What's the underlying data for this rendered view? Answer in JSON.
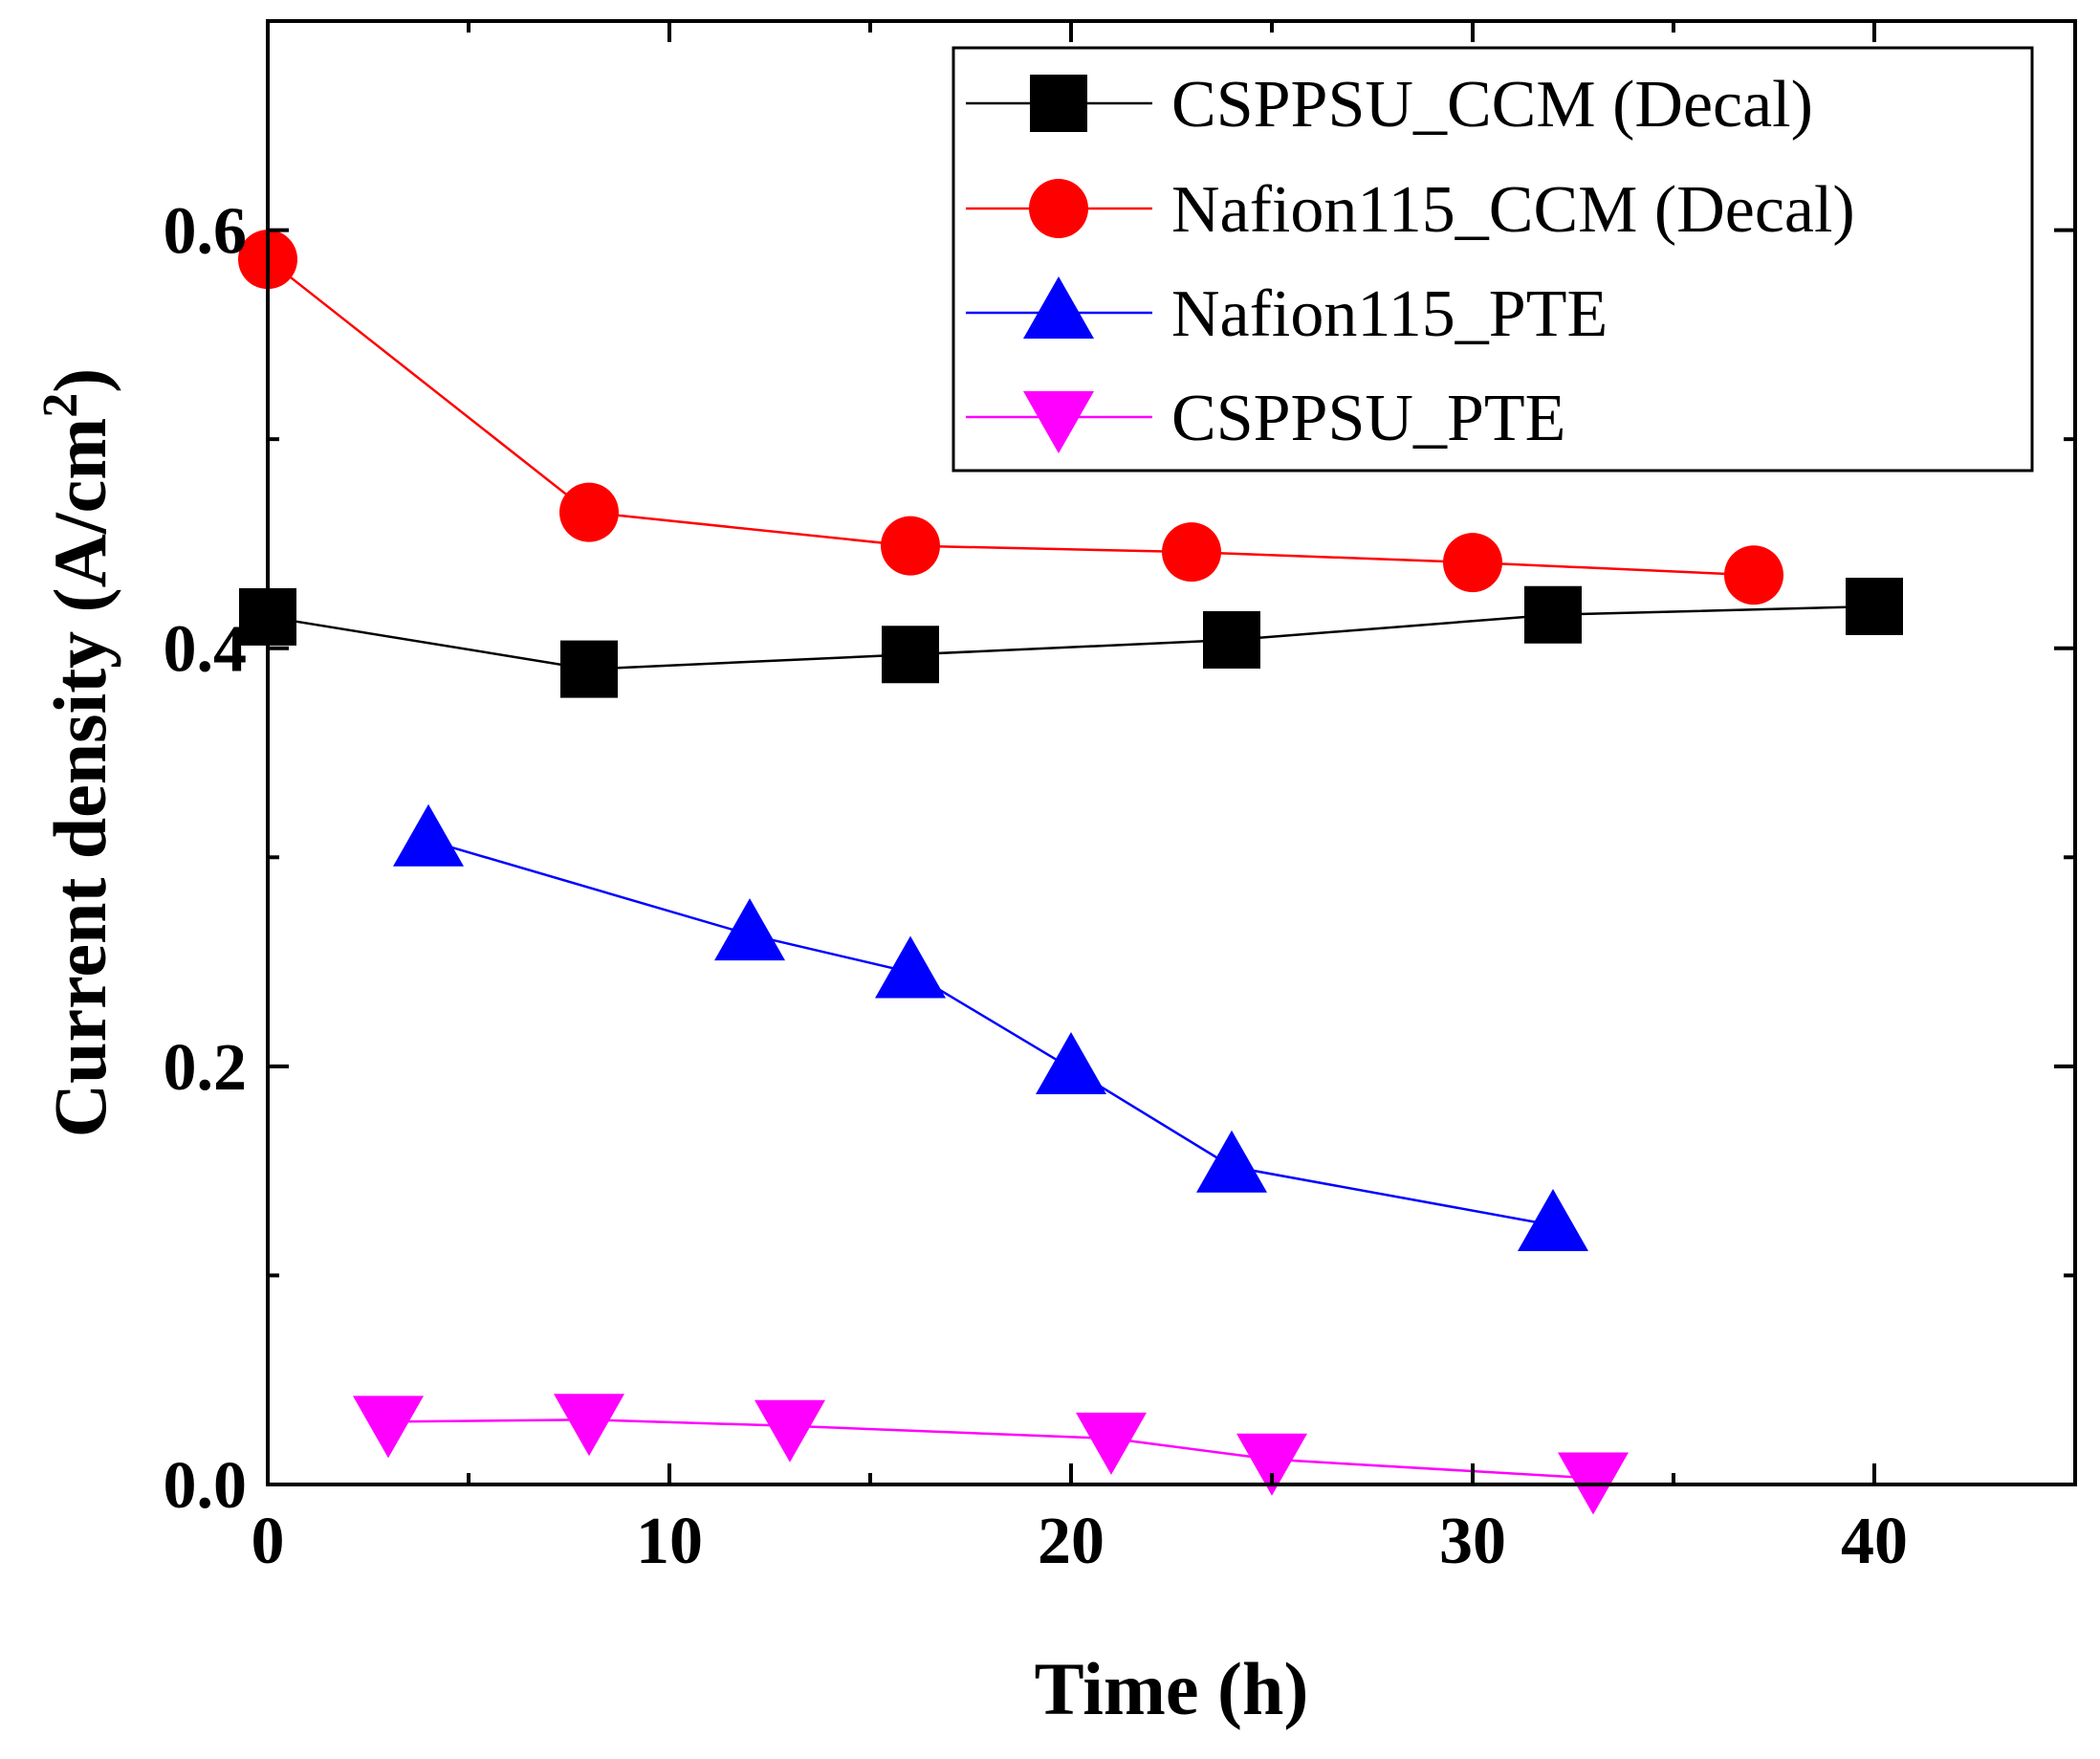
{
  "chart_data": {
    "type": "line",
    "title": "",
    "xlabel": "Time (h)",
    "ylabel_main": "Current density (A/cm",
    "ylabel_sup": "2",
    "ylabel_tail": ")",
    "xlim": [
      0,
      45
    ],
    "ylim": [
      0,
      0.7
    ],
    "xticks": [
      0,
      10,
      20,
      30,
      40
    ],
    "xtick_labels": [
      "0",
      "10",
      "20",
      "30",
      "40"
    ],
    "xminor": [
      5,
      15,
      25,
      35,
      45
    ],
    "yticks": [
      0,
      0.2,
      0.4,
      0.6
    ],
    "ytick_labels": [
      "0.0",
      "0.2",
      "0.4",
      "0.6"
    ],
    "yminor": [
      0.1,
      0.3,
      0.5
    ],
    "grid": false,
    "legend_position": "top-right",
    "series": [
      {
        "name": "CSPPSU_CCM (Decal)",
        "marker": "square",
        "color": "#000000",
        "x": [
          0,
          8,
          16,
          24,
          32,
          40
        ],
        "y": [
          0.415,
          0.39,
          0.397,
          0.404,
          0.416,
          0.42
        ]
      },
      {
        "name": "Nafion115_CCM (Decal)",
        "marker": "circle",
        "color": "#ff0000",
        "x": [
          0,
          8,
          16,
          23,
          30,
          37
        ],
        "y": [
          0.586,
          0.465,
          0.449,
          0.446,
          0.441,
          0.435
        ]
      },
      {
        "name": "Nafion115_PTE",
        "marker": "triangle-up",
        "color": "#0000ff",
        "x": [
          4,
          12,
          16,
          20,
          24,
          32
        ],
        "y": [
          0.308,
          0.263,
          0.245,
          0.199,
          0.152,
          0.124
        ]
      },
      {
        "name": "CSPPSU_PTE",
        "marker": "triangle-down",
        "color": "#ff00ff",
        "x": [
          3,
          8,
          13,
          21,
          25,
          33
        ],
        "y": [
          0.03,
          0.031,
          0.028,
          0.022,
          0.012,
          0.003
        ]
      }
    ]
  }
}
